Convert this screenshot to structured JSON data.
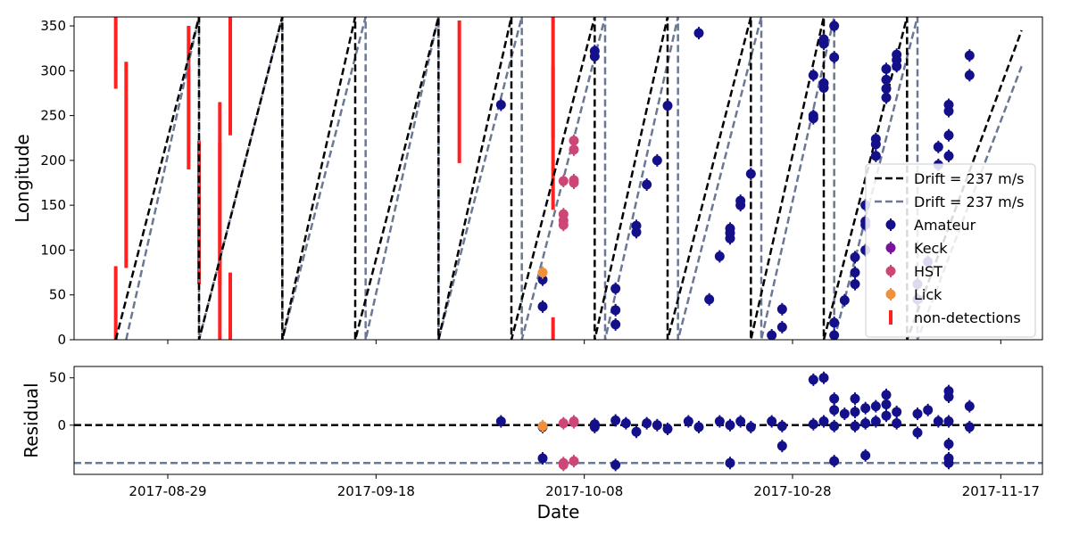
{
  "chart_data": [
    {
      "type": "scatter",
      "panel": "top",
      "title": "",
      "xlabel": "",
      "ylabel": "Longitude",
      "ylim": [
        0,
        360
      ],
      "xlim": [
        "2017-08-20",
        "2017-11-21"
      ],
      "yticks": [
        "0",
        "50",
        "100",
        "150",
        "200",
        "250",
        "300",
        "350"
      ],
      "xticks": [
        "2017-08-29",
        "2017-09-18",
        "2017-10-08",
        "2017-10-28",
        "2017-11-17"
      ],
      "legend_position": "right",
      "legend": [
        "Drift = 237 m/s",
        "Drift = 237 m/s",
        "Amateur",
        "Keck",
        "HST",
        "Lick",
        "non-detections"
      ],
      "colors": {
        "drift_black": "#000000",
        "drift_gray": "#6b7894",
        "amateur": "#14108a",
        "keck": "#7a139e",
        "hst": "#cc4778",
        "lick": "#f0903c",
        "nondet": "#ff2020"
      },
      "drift_black_resets": [
        "2017-08-24",
        "2017-09-01",
        "2017-09-09",
        "2017-09-16",
        "2017-09-24",
        "2017-10-01",
        "2017-10-09",
        "2017-10-16",
        "2017-10-24",
        "2017-10-31",
        "2017-11-08"
      ],
      "drift_gray_resets": [
        "2017-08-25",
        "2017-09-01",
        "2017-09-09",
        "2017-09-17",
        "2017-09-24",
        "2017-10-02",
        "2017-10-10",
        "2017-10-17",
        "2017-10-25",
        "2017-11-01",
        "2017-11-09"
      ],
      "drift_end": {
        "x": "2017-11-19",
        "black_y": 345,
        "gray_y": 305
      },
      "series": [
        {
          "name": "Amateur",
          "points": [
            [
              "2017-09-30",
              262
            ],
            [
              "2017-10-04",
              67
            ],
            [
              "2017-10-04",
              37
            ],
            [
              "2017-10-09",
              322
            ],
            [
              "2017-10-09",
              316
            ],
            [
              "2017-10-11",
              33
            ],
            [
              "2017-10-11",
              57
            ],
            [
              "2017-10-11",
              17
            ],
            [
              "2017-10-13",
              120
            ],
            [
              "2017-10-13",
              127
            ],
            [
              "2017-10-14",
              173
            ],
            [
              "2017-10-15",
              200
            ],
            [
              "2017-10-16",
              261
            ],
            [
              "2017-10-19",
              342
            ],
            [
              "2017-10-20",
              45
            ],
            [
              "2017-10-21",
              93
            ],
            [
              "2017-10-22",
              124
            ],
            [
              "2017-10-22",
              119
            ],
            [
              "2017-10-22",
              113
            ],
            [
              "2017-10-23",
              155
            ],
            [
              "2017-10-23",
              150
            ],
            [
              "2017-10-24",
              185
            ],
            [
              "2017-10-26",
              5
            ],
            [
              "2017-10-27",
              34
            ],
            [
              "2017-10-27",
              14
            ],
            [
              "2017-10-30",
              250
            ],
            [
              "2017-10-30",
              247
            ],
            [
              "2017-10-30",
              295
            ],
            [
              "2017-10-31",
              286
            ],
            [
              "2017-10-31",
              281
            ],
            [
              "2017-10-31",
              330
            ],
            [
              "2017-10-31",
              335
            ],
            [
              "2017-11-01",
              350
            ],
            [
              "2017-11-01",
              315
            ],
            [
              "2017-11-01",
              19
            ],
            [
              "2017-11-01",
              5
            ],
            [
              "2017-11-02",
              44
            ],
            [
              "2017-11-03",
              92
            ],
            [
              "2017-11-03",
              75
            ],
            [
              "2017-11-03",
              62
            ],
            [
              "2017-11-04",
              150
            ],
            [
              "2017-11-04",
              132
            ],
            [
              "2017-11-04",
              128
            ],
            [
              "2017-11-04",
              100
            ],
            [
              "2017-11-05",
              205
            ],
            [
              "2017-11-05",
              218
            ],
            [
              "2017-11-05",
              224
            ],
            [
              "2017-11-06",
              280
            ],
            [
              "2017-11-06",
              270
            ],
            [
              "2017-11-06",
              290
            ],
            [
              "2017-11-06",
              302
            ],
            [
              "2017-11-07",
              305
            ],
            [
              "2017-11-07",
              312
            ],
            [
              "2017-11-07",
              318
            ],
            [
              "2017-11-09",
              45
            ],
            [
              "2017-11-09",
              62
            ],
            [
              "2017-11-10",
              87
            ],
            [
              "2017-11-11",
              195
            ],
            [
              "2017-11-11",
              215
            ],
            [
              "2017-11-12",
              205
            ],
            [
              "2017-11-12",
              228
            ],
            [
              "2017-11-12",
              255
            ],
            [
              "2017-11-12",
              262
            ],
            [
              "2017-11-14",
              295
            ],
            [
              "2017-11-14",
              317
            ]
          ]
        },
        {
          "name": "Keck",
          "points": []
        },
        {
          "name": "HST",
          "points": [
            [
              "2017-10-06",
              128
            ],
            [
              "2017-10-06",
              133
            ],
            [
              "2017-10-06",
              140
            ],
            [
              "2017-10-06",
              177
            ],
            [
              "2017-10-07",
              175
            ],
            [
              "2017-10-07",
              178
            ],
            [
              "2017-10-07",
              212
            ],
            [
              "2017-10-07",
              222
            ]
          ]
        },
        {
          "name": "Lick",
          "points": [
            [
              "2017-10-04",
              75
            ]
          ]
        }
      ],
      "nondetections": [
        [
          "2017-08-24",
          280,
          360
        ],
        [
          "2017-08-24",
          0,
          82
        ],
        [
          "2017-08-25",
          80,
          310
        ],
        [
          "2017-08-31",
          190,
          350
        ],
        [
          "2017-09-01",
          62,
          222
        ],
        [
          "2017-09-03",
          60,
          265
        ],
        [
          "2017-09-03",
          0,
          220
        ],
        [
          "2017-09-04",
          228,
          360
        ],
        [
          "2017-09-04",
          0,
          75
        ],
        [
          "2017-09-26",
          197,
          356
        ],
        [
          "2017-10-05",
          225,
          360
        ],
        [
          "2017-10-05",
          145,
          305
        ],
        [
          "2017-10-05",
          0,
          25
        ]
      ]
    },
    {
      "type": "scatter",
      "panel": "bottom",
      "title": "",
      "xlabel": "Date",
      "ylabel": "Residual",
      "ylim": [
        -52,
        62
      ],
      "yticks": [
        "0",
        "50"
      ],
      "xticks": [
        "2017-08-29",
        "2017-09-18",
        "2017-10-08",
        "2017-10-28",
        "2017-11-17"
      ],
      "reference_lines": {
        "black": 0,
        "gray": -40
      },
      "series": [
        {
          "name": "Amateur",
          "points": [
            [
              "2017-09-30",
              4
            ],
            [
              "2017-10-04",
              -35
            ],
            [
              "2017-10-04",
              -2
            ],
            [
              "2017-10-09",
              1
            ],
            [
              "2017-10-09",
              -2
            ],
            [
              "2017-10-11",
              5
            ],
            [
              "2017-10-11",
              -42
            ],
            [
              "2017-10-12",
              2
            ],
            [
              "2017-10-13",
              -7
            ],
            [
              "2017-10-14",
              2
            ],
            [
              "2017-10-15",
              0
            ],
            [
              "2017-10-16",
              -4
            ],
            [
              "2017-10-18",
              4
            ],
            [
              "2017-10-19",
              -2
            ],
            [
              "2017-10-21",
              4
            ],
            [
              "2017-10-22",
              0
            ],
            [
              "2017-10-22",
              -40
            ],
            [
              "2017-10-23",
              4
            ],
            [
              "2017-10-24",
              -2
            ],
            [
              "2017-10-26",
              4
            ],
            [
              "2017-10-27",
              -1
            ],
            [
              "2017-10-27",
              -22
            ],
            [
              "2017-10-30",
              48
            ],
            [
              "2017-10-31",
              50
            ],
            [
              "2017-10-30",
              1
            ],
            [
              "2017-10-31",
              4
            ],
            [
              "2017-11-01",
              28
            ],
            [
              "2017-11-01",
              16
            ],
            [
              "2017-11-01",
              -1
            ],
            [
              "2017-11-01",
              -38
            ],
            [
              "2017-11-02",
              12
            ],
            [
              "2017-11-03",
              28
            ],
            [
              "2017-11-03",
              14
            ],
            [
              "2017-11-03",
              -1
            ],
            [
              "2017-11-04",
              18
            ],
            [
              "2017-11-04",
              2
            ],
            [
              "2017-11-04",
              -32
            ],
            [
              "2017-11-05",
              20
            ],
            [
              "2017-11-05",
              4
            ],
            [
              "2017-11-06",
              32
            ],
            [
              "2017-11-06",
              22
            ],
            [
              "2017-11-06",
              10
            ],
            [
              "2017-11-07",
              14
            ],
            [
              "2017-11-07",
              2
            ],
            [
              "2017-11-09",
              12
            ],
            [
              "2017-11-09",
              -8
            ],
            [
              "2017-11-10",
              16
            ],
            [
              "2017-11-11",
              4
            ],
            [
              "2017-11-12",
              36
            ],
            [
              "2017-11-12",
              30
            ],
            [
              "2017-11-12",
              4
            ],
            [
              "2017-11-12",
              -20
            ],
            [
              "2017-11-12",
              -35
            ],
            [
              "2017-11-12",
              -40
            ],
            [
              "2017-11-14",
              20
            ],
            [
              "2017-11-14",
              -2
            ]
          ]
        },
        {
          "name": "HST",
          "points": [
            [
              "2017-10-06",
              2
            ],
            [
              "2017-10-06",
              -42
            ],
            [
              "2017-10-06",
              -40
            ],
            [
              "2017-10-07",
              3
            ],
            [
              "2017-10-07",
              4
            ],
            [
              "2017-10-07",
              -38
            ]
          ]
        },
        {
          "name": "Lick",
          "points": [
            [
              "2017-10-04",
              -1
            ]
          ]
        }
      ]
    }
  ]
}
